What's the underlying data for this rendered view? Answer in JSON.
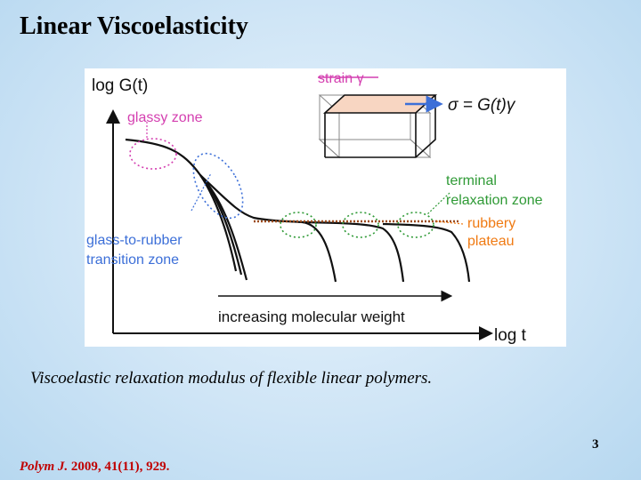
{
  "slide": {
    "title": "Linear Viscoelasticity",
    "caption": "Viscoelastic relaxation modulus of flexible linear polymers.",
    "page_number": "3",
    "citation": {
      "journal": "Polym J.",
      "details": " 2009, 41(11), 929."
    }
  },
  "figure": {
    "y_axis_label": "log G(t)",
    "x_axis_label": "log t",
    "strain_label": "strain γ",
    "equation": "σ = G(t)γ",
    "glassy_zone": "glassy zone",
    "transition_zone": [
      "glass-to-rubber",
      "transition zone"
    ],
    "terminal_zone": [
      "terminal",
      "relaxation zone"
    ],
    "rubbery_plateau": [
      "rubbery",
      "plateau"
    ],
    "arrow_label": "increasing molecular weight"
  },
  "colors": {
    "magenta": "#d43fb0",
    "blue": "#3c6fd8",
    "green": "#2f9a36",
    "orange": "#f07a12",
    "brown_dots": "#9b4a1c"
  }
}
